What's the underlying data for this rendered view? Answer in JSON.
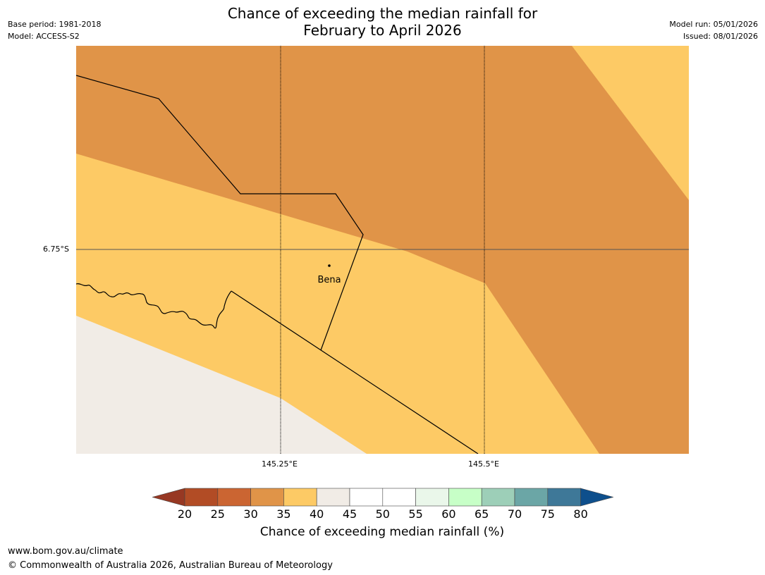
{
  "title": {
    "line1": "Chance of exceeding the median rainfall for",
    "line2": "February to April 2026"
  },
  "meta_left": {
    "base_period": "Base period: 1981-2018",
    "model": "Model: ACCESS-S2"
  },
  "meta_right": {
    "model_run": "Model run: 05/01/2026",
    "issued": "Issued: 08/01/2026"
  },
  "map": {
    "lat_label": "6.75°S",
    "lon_labels": [
      "145.25°E",
      "145.5°E"
    ],
    "place": "Bena",
    "zone_colors": {
      "p30_35": "#e09448",
      "p35_40": "#fdca65",
      "p40_45": "#f1ece6"
    }
  },
  "colorbar": {
    "title": "Chance of exceeding median rainfall (%)",
    "ticks": [
      "20",
      "25",
      "30",
      "35",
      "40",
      "45",
      "50",
      "55",
      "60",
      "65",
      "70",
      "75",
      "80"
    ],
    "under_color": "#973823",
    "over_color": "#0e4f8c",
    "colors": [
      "#b24c25",
      "#cb6532",
      "#e09448",
      "#fdca65",
      "#f1ece6",
      "#ffffff",
      "#ffffff",
      "#eaf7ea",
      "#c7ffc7",
      "#9dcfb8",
      "#6ba6a6",
      "#3e7898"
    ]
  },
  "footer": {
    "url": "www.bom.gov.au/climate",
    "copyright": "© Commonwealth of Australia 2026, Australian Bureau of Meteorology"
  }
}
